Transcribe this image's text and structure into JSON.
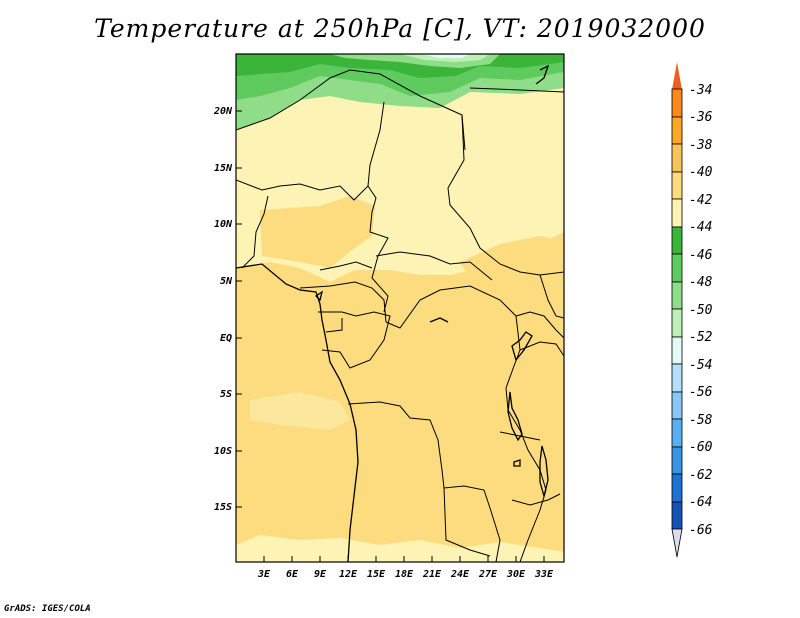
{
  "title": "Temperature at 250hPa [C], VT: 2019032000",
  "footer": "GrADS: IGES/COLA",
  "map": {
    "lat_labels": [
      "20N",
      "15N",
      "10N",
      "5N",
      "EQ",
      "5S",
      "10S",
      "15S"
    ],
    "lon_labels": [
      "3E",
      "6E",
      "9E",
      "12E",
      "15E",
      "18E",
      "21E",
      "24E",
      "27E",
      "30E",
      "33E"
    ]
  },
  "colorbar": {
    "labels": [
      "-34",
      "-36",
      "-38",
      "-40",
      "-42",
      "-44",
      "-46",
      "-48",
      "-50",
      "-52",
      "-54",
      "-56",
      "-58",
      "-60",
      "-62",
      "-64",
      "-66"
    ],
    "colors": [
      "#f25c1e",
      "#fa8a1c",
      "#f9a925",
      "#f7c45a",
      "#fcdc7f",
      "#fcf3b4",
      "#3ab53a",
      "#5fca5e",
      "#8fdd88",
      "#bff0b7",
      "#e3fbf8",
      "#b6dffb",
      "#89c8f6",
      "#5cafee",
      "#3b93e3",
      "#1e72d2",
      "#1452b4",
      "#0c2a82",
      "#dcdcf0"
    ]
  }
}
